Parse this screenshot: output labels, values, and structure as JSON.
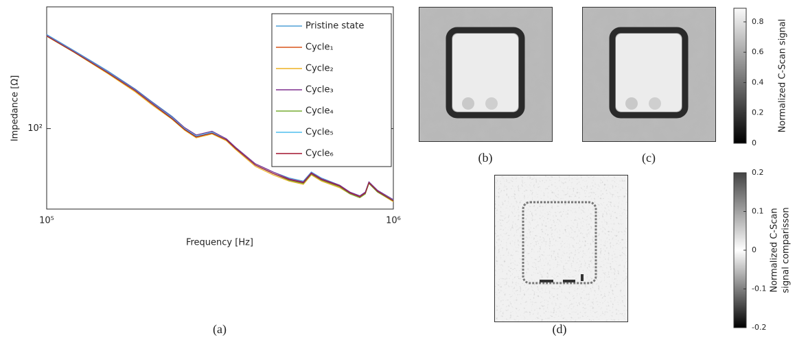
{
  "chart_data": {
    "type": "line",
    "xlabel": "Frequency [Hz]",
    "ylabel": "Impedance [Ω]",
    "xscale": "log",
    "yscale": "log",
    "legend": "upper right",
    "xlim": [
      100000,
      1000000
    ],
    "xticks": [
      {
        "value": 100000,
        "label": "10⁵"
      },
      {
        "value": 1000000,
        "label": "10⁶"
      }
    ],
    "ylim": [
      40,
      400
    ],
    "yticks": [
      {
        "value": 100,
        "label": "10²"
      }
    ],
    "x": [
      100000,
      120000,
      150000,
      180000,
      200000,
      230000,
      250000,
      270000,
      300000,
      330000,
      350000,
      400000,
      450000,
      500000,
      550000,
      580000,
      620000,
      700000,
      750000,
      800000,
      830000,
      850000,
      900000,
      1000000
    ],
    "series": [
      {
        "name": "Pristine state",
        "color": "#4f9fd6",
        "values": [
          292,
          243,
          193,
          157,
          137,
          115,
          101,
          93,
          97,
          89,
          81,
          67,
          61,
          57,
          55,
          61,
          57,
          52.5,
          48.5,
          46.5,
          48.5,
          54.5,
          49.5,
          44.5
        ]
      },
      {
        "name": "Cycle₁",
        "color": "#d95319",
        "values": [
          288,
          240,
          189,
          154,
          134,
          112,
          99,
          91,
          95,
          88,
          80,
          66,
          60,
          56,
          54,
          60,
          56,
          52,
          48,
          46,
          48,
          54,
          49,
          44
        ]
      },
      {
        "name": "Cycle₂",
        "color": "#edb120",
        "values": [
          286,
          238,
          187,
          152,
          132,
          111,
          98,
          90,
          94,
          87,
          79,
          65,
          59,
          55,
          53,
          59,
          55,
          51,
          47.5,
          45.5,
          47.5,
          53.5,
          48.5,
          43.5
        ]
      },
      {
        "name": "Cycle₃",
        "color": "#7e2f8e",
        "values": [
          289,
          241,
          191,
          156,
          136,
          114,
          101,
          93,
          97,
          89,
          81,
          67,
          61,
          56.5,
          54.5,
          60.5,
          56.5,
          52.5,
          48.5,
          46.5,
          48.5,
          54.5,
          49.5,
          44.5
        ]
      },
      {
        "name": "Cycle₄",
        "color": "#77ac30",
        "values": [
          287,
          239,
          189,
          154,
          134,
          112,
          99,
          91,
          95,
          88,
          80,
          66,
          60,
          55.5,
          53.5,
          59.5,
          55.5,
          51.5,
          47.5,
          45.5,
          47.5,
          53.5,
          48.5,
          43.8
        ]
      },
      {
        "name": "Cycle₅",
        "color": "#4dbeee",
        "values": [
          288,
          240,
          190,
          155,
          135,
          113,
          100,
          92,
          96,
          88,
          80,
          66,
          60,
          56,
          54,
          60,
          56,
          52,
          48,
          46,
          48,
          54,
          49,
          44.2
        ]
      },
      {
        "name": "Cycle₆",
        "color": "#a2142f",
        "values": [
          287,
          239,
          189,
          154,
          134,
          112,
          99,
          91,
          95,
          88,
          80,
          66,
          60,
          56,
          54,
          60,
          56,
          52,
          48,
          46,
          48,
          54,
          49,
          44
        ]
      }
    ]
  },
  "panels": {
    "captions": [
      "(a)",
      "(b)",
      "(c)",
      "(d)"
    ],
    "colorbars": [
      {
        "label": "Normalized C-Scan signal",
        "lim": [
          0,
          0.89
        ],
        "ticks": [
          0,
          0.2,
          0.4,
          0.6,
          0.8
        ]
      },
      {
        "label": [
          "Normalized C-Scan",
          "signal comparisson"
        ],
        "lim": [
          -0.2,
          0.2
        ],
        "ticks": [
          -0.2,
          -0.1,
          0,
          0.1,
          0.2
        ]
      }
    ]
  }
}
